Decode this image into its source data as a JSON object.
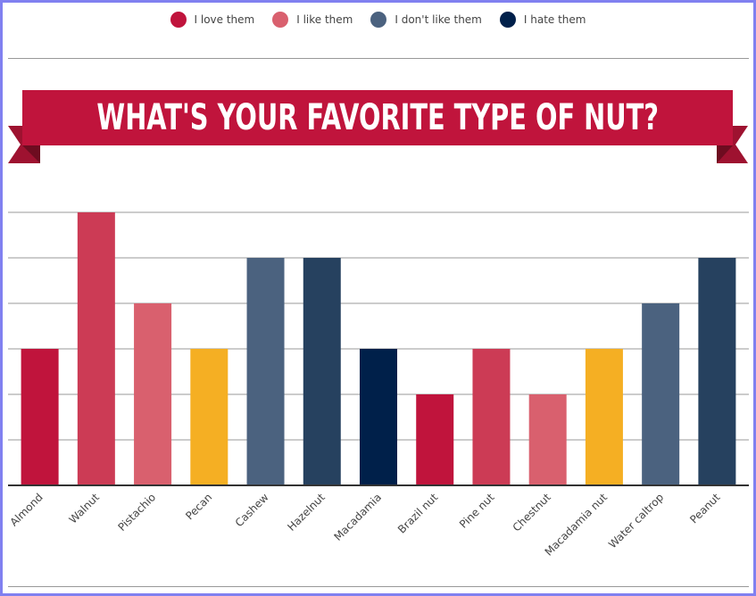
{
  "legend": [
    {
      "label": "I love them",
      "color": "#c0143c"
    },
    {
      "label": "I like them",
      "color": "#d9606e"
    },
    {
      "label": "I don't like them",
      "color": "#4b627f"
    },
    {
      "label": "I hate them",
      "color": "#00204a"
    }
  ],
  "banner": {
    "title": "WHAT'S YOUR FAVORITE TYPE OF NUT?"
  },
  "chart_data": {
    "type": "bar",
    "categories": [
      "Almond",
      "Walnut",
      "Pistachio",
      "Pecan",
      "Cashew",
      "Hazelnut",
      "Macadamia",
      "Brazil nut",
      "Pine nut",
      "Chestnut",
      "Macadamia nut",
      "Water caltrop",
      "Peanut"
    ],
    "values": [
      3,
      6,
      4,
      3,
      5,
      5,
      3,
      2,
      3,
      2,
      3,
      4,
      5
    ],
    "colors": [
      "#c0143c",
      "#cc3b55",
      "#d9606e",
      "#f5af23",
      "#4b627f",
      "#26415f",
      "#00204a",
      "#c0143c",
      "#cc3b55",
      "#d9606e",
      "#f5af23",
      "#4b627f",
      "#26415f"
    ],
    "ylim": [
      0,
      6
    ],
    "grid": true,
    "legend_position": "top"
  }
}
